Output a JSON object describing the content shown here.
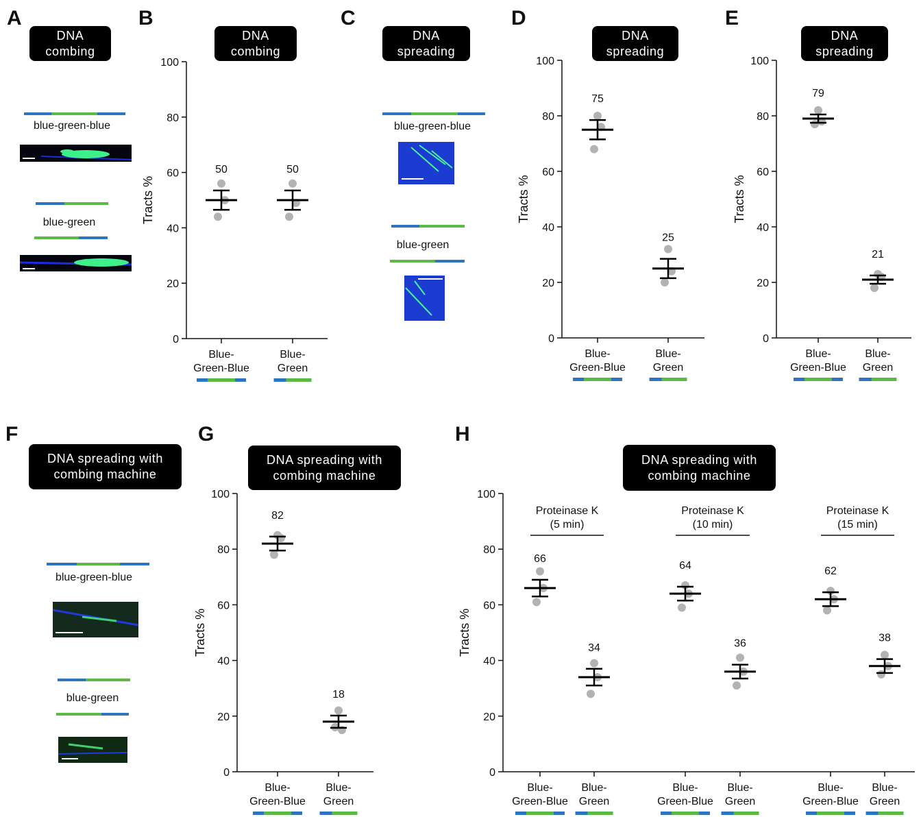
{
  "chart_data": [
    {
      "type": "dot",
      "panel": "B",
      "title": "DNA combing",
      "y_label": "Tracts %",
      "categories": [
        "Blue-Green-Blue",
        "Blue-Green"
      ],
      "values": [
        50,
        50
      ],
      "errors": [
        3.5,
        3.5
      ],
      "points": [
        [
          56,
          50,
          44
        ],
        [
          56,
          49,
          44
        ]
      ],
      "ylim": [
        0,
        100
      ],
      "yticks": [
        0,
        20,
        40,
        60,
        80,
        100
      ],
      "point_color": "#b3b3b3",
      "color": "#000000"
    },
    {
      "type": "dot",
      "panel": "D",
      "title": "DNA spreading",
      "y_label": "Tracts %",
      "categories": [
        "Blue-Green-Blue",
        "Blue-Green"
      ],
      "values": [
        75,
        25
      ],
      "errors": [
        3.5,
        3.5
      ],
      "points": [
        [
          80,
          76,
          68
        ],
        [
          32,
          24,
          20
        ]
      ],
      "ylim": [
        0,
        100
      ],
      "yticks": [
        0,
        20,
        40,
        60,
        80,
        100
      ],
      "point_color": "#b3b3b3",
      "color": "#000000"
    },
    {
      "type": "dot",
      "panel": "E",
      "title": "DNA spreading",
      "y_label": "Tracts %",
      "categories": [
        "Blue-Green-Blue",
        "Blue-Green"
      ],
      "values": [
        79,
        21
      ],
      "errors": [
        1.5,
        1.5
      ],
      "points": [
        [
          82,
          78,
          77
        ],
        [
          23,
          22,
          18
        ]
      ],
      "ylim": [
        0,
        100
      ],
      "yticks": [
        0,
        20,
        40,
        60,
        80,
        100
      ],
      "point_color": "#b3b3b3",
      "color": "#000000"
    },
    {
      "type": "dot",
      "panel": "G",
      "title": "DNA spreading with combing machine",
      "y_label": "Tracts %",
      "categories": [
        "Blue-Green-Blue",
        "Blue-Green"
      ],
      "values": [
        82,
        18
      ],
      "errors": [
        2.5,
        2.2
      ],
      "points": [
        [
          85,
          84,
          78
        ],
        [
          22,
          15,
          16
        ]
      ],
      "ylim": [
        0,
        100
      ],
      "yticks": [
        0,
        20,
        40,
        60,
        80,
        100
      ],
      "point_color": "#b3b3b3",
      "color": "#000000"
    },
    {
      "type": "dot",
      "panel": "H",
      "title": "DNA spreading with combing machine",
      "y_label": "Tracts %",
      "categories": [
        "Blue-Green-Blue",
        "Blue-Green",
        "Blue-Green-Blue",
        "Blue-Green",
        "Blue-Green-Blue",
        "Blue-Green"
      ],
      "values": [
        66,
        34,
        64,
        36,
        62,
        38
      ],
      "errors": [
        3,
        3,
        2.5,
        2.5,
        2.5,
        2.5
      ],
      "points": [
        [
          72,
          66,
          61
        ],
        [
          39,
          34,
          28
        ],
        [
          67,
          64,
          59
        ],
        [
          41,
          36,
          31
        ],
        [
          65,
          62,
          58
        ],
        [
          42,
          38,
          35
        ]
      ],
      "annotations": [
        "Proteinase K (5 min)",
        "Proteinase K (10 min)",
        "Proteinase K (15 min)"
      ],
      "ylim": [
        0,
        100
      ],
      "yticks": [
        0,
        20,
        40,
        60,
        80,
        100
      ],
      "point_color": "#b3b3b3",
      "color": "#000000"
    }
  ],
  "image_panels": [
    {
      "panel": "A",
      "title": "DNA combing",
      "labels": [
        "blue-green-blue",
        "blue-green"
      ]
    },
    {
      "panel": "C",
      "title": "DNA spreading",
      "labels": [
        "blue-green-blue",
        "blue-green"
      ]
    },
    {
      "panel": "F",
      "title": "DNA spreading with combing machine",
      "labels": [
        "blue-green-blue",
        "blue-green"
      ]
    }
  ]
}
